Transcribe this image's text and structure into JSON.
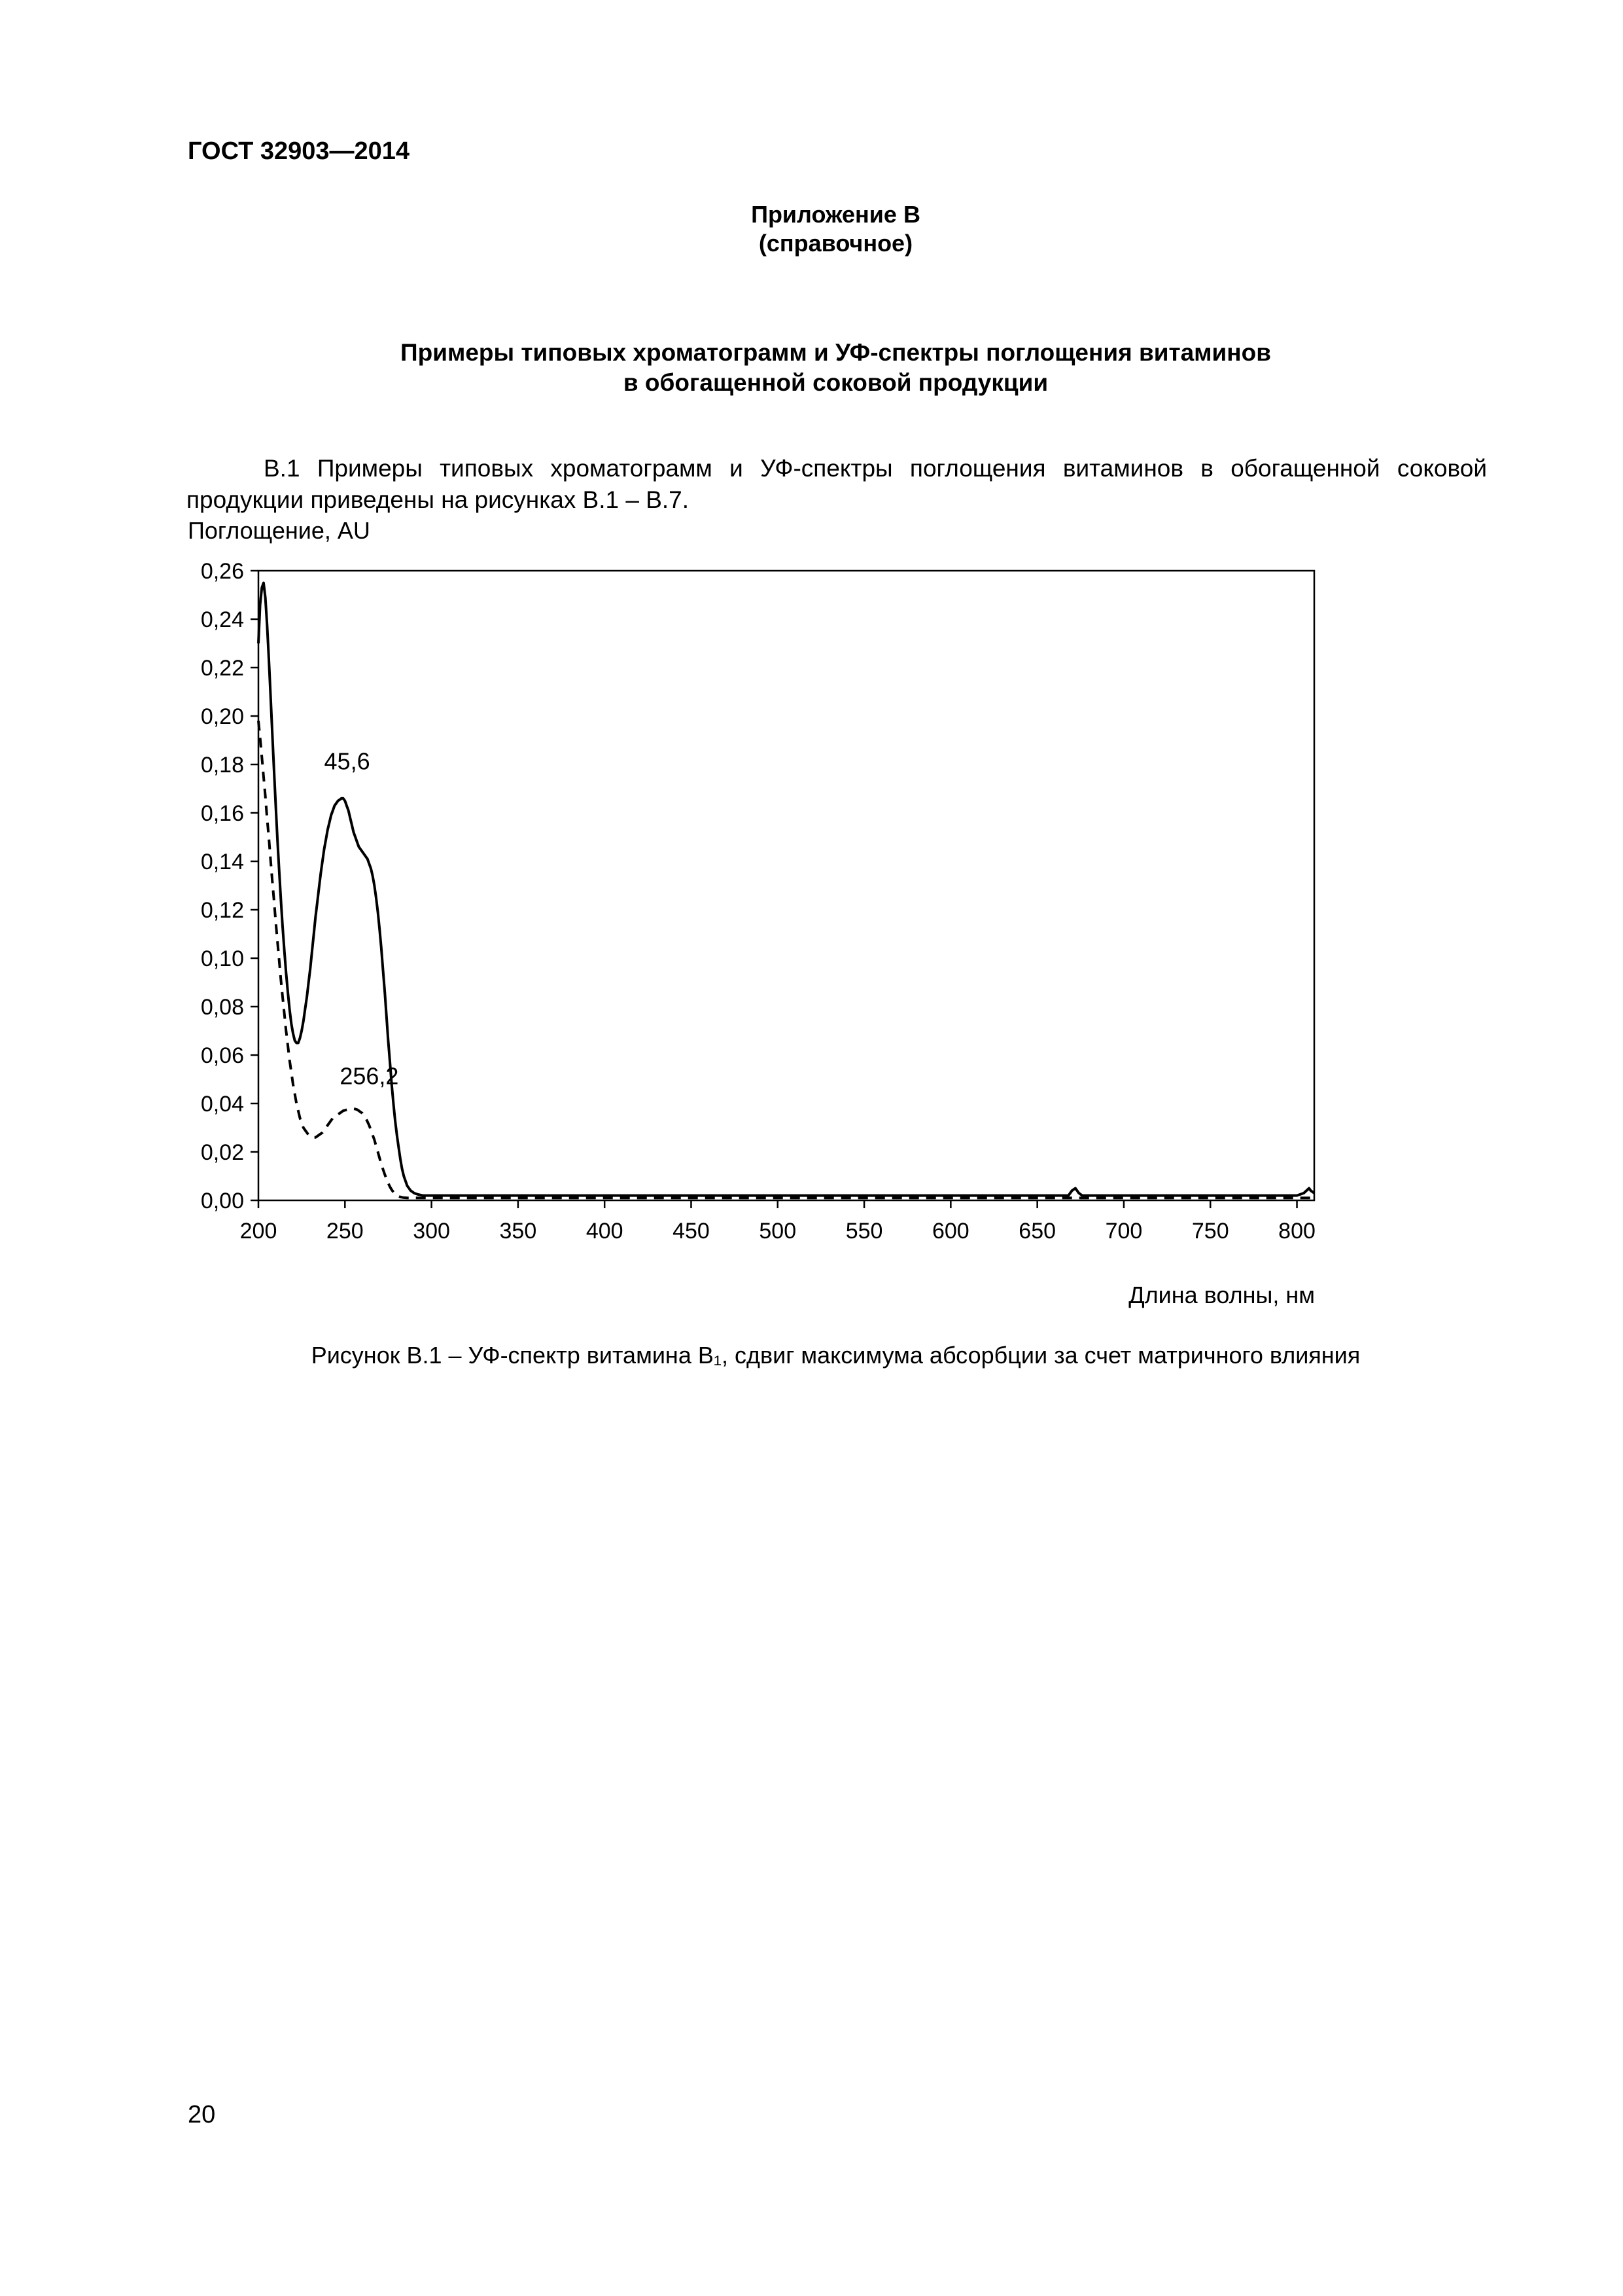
{
  "page": {
    "header": "ГОСТ 32903—2014",
    "page_number": "20"
  },
  "appendix": {
    "label": "Приложение В",
    "kind": "(справочное)"
  },
  "title": {
    "line1": "Примеры типовых хроматограмм и УФ-спектры поглощения витаминов",
    "line2": "в обогащенной соковой продукции"
  },
  "paragraph": "В.1 Примеры типовых хроматограмм и УФ-спектры поглощения витаминов в обогащенной соковой продукции приведены на рисунках В.1 – В.7.",
  "figure": {
    "y_axis_title": "Поглощение, AU",
    "x_axis_title": "Длина волны, нм",
    "caption": "Рисунок В.1 – УФ-спектр витамина В₁, сдвиг максимума абсорбции за счет матричного влияния"
  },
  "chart_data": {
    "type": "line",
    "title": "",
    "xlabel": "Длина волны, нм",
    "ylabel": "Поглощение, AU",
    "xlim": [
      200,
      810
    ],
    "ylim": [
      0,
      0.26
    ],
    "grid": false,
    "legend": "none",
    "xticks": {
      "values": [
        200,
        250,
        300,
        350,
        400,
        450,
        500,
        550,
        600,
        650,
        700,
        750,
        800
      ],
      "labels": [
        "200",
        "250",
        "300",
        "350",
        "400",
        "450",
        "500",
        "550",
        "600",
        "650",
        "700",
        "750",
        "800"
      ]
    },
    "yticks": {
      "values": [
        0,
        0.02,
        0.04,
        0.06,
        0.08,
        0.1,
        0.12,
        0.14,
        0.16,
        0.18,
        0.2,
        0.22,
        0.24,
        0.26
      ],
      "labels": [
        "0,00",
        "0,02",
        "0,04",
        "0,06",
        "0,08",
        "0,10",
        "0,12",
        "0,14",
        "0,16",
        "0,18",
        "0,20",
        "0,22",
        "0,24",
        "0,26"
      ]
    },
    "annotations": [
      {
        "x": 238,
        "y": 0.178,
        "label": "45,6"
      },
      {
        "x": 247,
        "y": 0.048,
        "label": "256,2"
      }
    ],
    "series": [
      {
        "name": "solid",
        "style": "solid",
        "points": [
          [
            200,
            0.23
          ],
          [
            200.5,
            0.238
          ],
          [
            201,
            0.246
          ],
          [
            202,
            0.253
          ],
          [
            203,
            0.255
          ],
          [
            204,
            0.249
          ],
          [
            205,
            0.238
          ],
          [
            206,
            0.224
          ],
          [
            207,
            0.209
          ],
          [
            208,
            0.193
          ],
          [
            209,
            0.178
          ],
          [
            210,
            0.163
          ],
          [
            211,
            0.149
          ],
          [
            212,
            0.136
          ],
          [
            213,
            0.124
          ],
          [
            214,
            0.113
          ],
          [
            215,
            0.103
          ],
          [
            216,
            0.094
          ],
          [
            217,
            0.086
          ],
          [
            218,
            0.079
          ],
          [
            219,
            0.073
          ],
          [
            220,
            0.069
          ],
          [
            221,
            0.066
          ],
          [
            222,
            0.065
          ],
          [
            223,
            0.065
          ],
          [
            224,
            0.067
          ],
          [
            225,
            0.07
          ],
          [
            226,
            0.074
          ],
          [
            227,
            0.079
          ],
          [
            228,
            0.084
          ],
          [
            229,
            0.09
          ],
          [
            230,
            0.096
          ],
          [
            231,
            0.103
          ],
          [
            232,
            0.11
          ],
          [
            233,
            0.117
          ],
          [
            234,
            0.123
          ],
          [
            235,
            0.129
          ],
          [
            236,
            0.135
          ],
          [
            237,
            0.14
          ],
          [
            238,
            0.145
          ],
          [
            239,
            0.149
          ],
          [
            240,
            0.153
          ],
          [
            241,
            0.156
          ],
          [
            242,
            0.159
          ],
          [
            243,
            0.161
          ],
          [
            244,
            0.163
          ],
          [
            245,
            0.164
          ],
          [
            246,
            0.165
          ],
          [
            247,
            0.1655
          ],
          [
            248,
            0.166
          ],
          [
            249,
            0.166
          ],
          [
            250,
            0.165
          ],
          [
            251,
            0.163
          ],
          [
            252,
            0.161
          ],
          [
            253,
            0.158
          ],
          [
            254,
            0.155
          ],
          [
            255,
            0.152
          ],
          [
            256,
            0.15
          ],
          [
            257,
            0.148
          ],
          [
            258,
            0.146
          ],
          [
            259,
            0.145
          ],
          [
            260,
            0.144
          ],
          [
            261,
            0.143
          ],
          [
            262,
            0.142
          ],
          [
            263,
            0.141
          ],
          [
            264,
            0.139
          ],
          [
            265,
            0.137
          ],
          [
            266,
            0.134
          ],
          [
            267,
            0.13
          ],
          [
            268,
            0.125
          ],
          [
            269,
            0.119
          ],
          [
            270,
            0.112
          ],
          [
            271,
            0.104
          ],
          [
            272,
            0.095
          ],
          [
            273,
            0.086
          ],
          [
            274,
            0.076
          ],
          [
            275,
            0.066
          ],
          [
            276,
            0.057
          ],
          [
            277,
            0.048
          ],
          [
            278,
            0.04
          ],
          [
            279,
            0.033
          ],
          [
            280,
            0.027
          ],
          [
            281,
            0.022
          ],
          [
            282,
            0.017
          ],
          [
            283,
            0.013
          ],
          [
            284,
            0.01
          ],
          [
            285,
            0.008
          ],
          [
            286,
            0.006
          ],
          [
            287,
            0.005
          ],
          [
            288,
            0.004
          ],
          [
            290,
            0.003
          ],
          [
            292,
            0.0025
          ],
          [
            295,
            0.002
          ],
          [
            300,
            0.002
          ],
          [
            320,
            0.002
          ],
          [
            350,
            0.002
          ],
          [
            400,
            0.002
          ],
          [
            450,
            0.002
          ],
          [
            500,
            0.002
          ],
          [
            550,
            0.002
          ],
          [
            600,
            0.002
          ],
          [
            650,
            0.002
          ],
          [
            668,
            0.002
          ],
          [
            670,
            0.004
          ],
          [
            672,
            0.005
          ],
          [
            674,
            0.003
          ],
          [
            676,
            0.002
          ],
          [
            700,
            0.002
          ],
          [
            750,
            0.002
          ],
          [
            790,
            0.002
          ],
          [
            800,
            0.002
          ],
          [
            804,
            0.003
          ],
          [
            807,
            0.005
          ],
          [
            808,
            0.004
          ],
          [
            810,
            0.003
          ]
        ]
      },
      {
        "name": "dashed",
        "style": "dashed",
        "points": [
          [
            200,
            0.198
          ],
          [
            201,
            0.191
          ],
          [
            202,
            0.183
          ],
          [
            203,
            0.175
          ],
          [
            204,
            0.167
          ],
          [
            205,
            0.158
          ],
          [
            206,
            0.15
          ],
          [
            207,
            0.141
          ],
          [
            208,
            0.132
          ],
          [
            209,
            0.124
          ],
          [
            210,
            0.115
          ],
          [
            211,
            0.107
          ],
          [
            212,
            0.099
          ],
          [
            213,
            0.091
          ],
          [
            214,
            0.084
          ],
          [
            215,
            0.077
          ],
          [
            216,
            0.07
          ],
          [
            217,
            0.064
          ],
          [
            218,
            0.058
          ],
          [
            219,
            0.053
          ],
          [
            220,
            0.048
          ],
          [
            221,
            0.044
          ],
          [
            222,
            0.04
          ],
          [
            223,
            0.037
          ],
          [
            224,
            0.034
          ],
          [
            225,
            0.032
          ],
          [
            226,
            0.03
          ],
          [
            227,
            0.029
          ],
          [
            228,
            0.028
          ],
          [
            229,
            0.027
          ],
          [
            230,
            0.0265
          ],
          [
            231,
            0.026
          ],
          [
            232,
            0.026
          ],
          [
            233,
            0.026
          ],
          [
            234,
            0.0265
          ],
          [
            235,
            0.027
          ],
          [
            236,
            0.0275
          ],
          [
            237,
            0.028
          ],
          [
            238,
            0.029
          ],
          [
            239,
            0.03
          ],
          [
            240,
            0.031
          ],
          [
            241,
            0.032
          ],
          [
            242,
            0.033
          ],
          [
            243,
            0.034
          ],
          [
            244,
            0.0345
          ],
          [
            245,
            0.035
          ],
          [
            246,
            0.0355
          ],
          [
            247,
            0.036
          ],
          [
            248,
            0.0365
          ],
          [
            249,
            0.037
          ],
          [
            250,
            0.0372
          ],
          [
            251,
            0.0374
          ],
          [
            252,
            0.0376
          ],
          [
            253,
            0.0377
          ],
          [
            254,
            0.0378
          ],
          [
            255,
            0.0378
          ],
          [
            256,
            0.0377
          ],
          [
            257,
            0.0375
          ],
          [
            258,
            0.037
          ],
          [
            259,
            0.0365
          ],
          [
            260,
            0.036
          ],
          [
            261,
            0.035
          ],
          [
            262,
            0.034
          ],
          [
            263,
            0.0325
          ],
          [
            264,
            0.031
          ],
          [
            265,
            0.029
          ],
          [
            266,
            0.027
          ],
          [
            267,
            0.025
          ],
          [
            268,
            0.0225
          ],
          [
            269,
            0.02
          ],
          [
            270,
            0.0175
          ],
          [
            271,
            0.015
          ],
          [
            272,
            0.0128
          ],
          [
            273,
            0.0107
          ],
          [
            274,
            0.0088
          ],
          [
            275,
            0.0071
          ],
          [
            276,
            0.0056
          ],
          [
            277,
            0.0044
          ],
          [
            278,
            0.0034
          ],
          [
            279,
            0.0026
          ],
          [
            280,
            0.002
          ],
          [
            282,
            0.0014
          ],
          [
            284,
            0.0011
          ],
          [
            286,
            0.001
          ],
          [
            290,
            0.001
          ],
          [
            300,
            0.001
          ],
          [
            350,
            0.001
          ],
          [
            400,
            0.001
          ],
          [
            450,
            0.001
          ],
          [
            500,
            0.001
          ],
          [
            550,
            0.001
          ],
          [
            600,
            0.001
          ],
          [
            650,
            0.001
          ],
          [
            700,
            0.001
          ],
          [
            750,
            0.001
          ],
          [
            800,
            0.001
          ],
          [
            810,
            0.001
          ]
        ]
      }
    ]
  }
}
